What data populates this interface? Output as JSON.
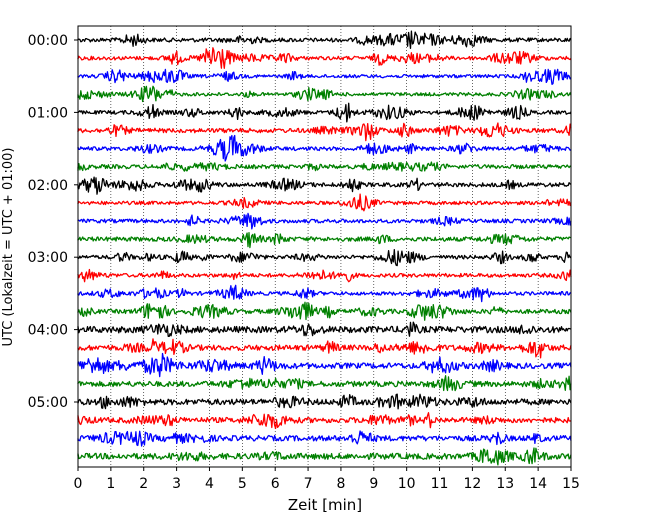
{
  "chart_data": {
    "type": "line",
    "title": "",
    "xlabel": "Zeit  [min]",
    "ylabel": "UTC (Lokalzeit = UTC + 01:00)",
    "xlim": [
      0,
      15
    ],
    "x_ticks": [
      0,
      1,
      2,
      3,
      4,
      5,
      6,
      7,
      8,
      9,
      10,
      11,
      12,
      13,
      14,
      15
    ],
    "y_tick_labels": [
      "00:00",
      "01:00",
      "02:00",
      "03:00",
      "04:00",
      "05:00"
    ],
    "trace_minutes_per_row": 15,
    "row_start_times": [
      "00:00",
      "00:15",
      "00:30",
      "00:45",
      "01:00",
      "01:15",
      "01:30",
      "01:45",
      "02:00",
      "02:15",
      "02:30",
      "02:45",
      "03:00",
      "03:15",
      "03:30",
      "03:45",
      "04:00",
      "04:15",
      "04:30",
      "04:45",
      "05:00",
      "05:15",
      "05:30",
      "05:45"
    ],
    "color_cycle": [
      "#000000",
      "#ff0000",
      "#0000ff",
      "#008000"
    ],
    "grid": "vertical dotted at each minute",
    "legend": "none"
  }
}
